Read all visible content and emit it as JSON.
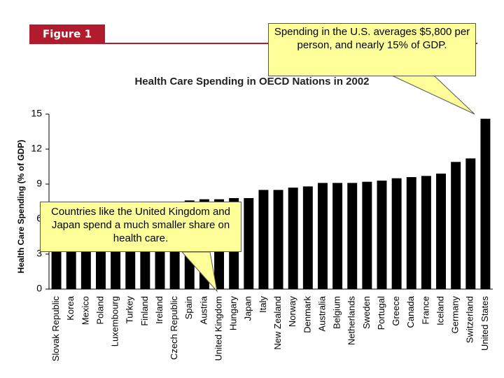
{
  "chart_data": {
    "type": "bar",
    "figure_label": "Figure 1",
    "title": "Health Care Spending in OECD Nations in 2002",
    "y_label": "Health Care Spending (% of GDP)",
    "annotations": [
      "Spending in the U.S. averages $5,800 per person, and nearly 15% of GDP.",
      "Countries like the United Kingdom and Japan spend a much smaller share on health care."
    ],
    "categories": [
      "Slovak Republic",
      "Korea",
      "Mexico",
      "Poland",
      "Luxembourg",
      "Turkey",
      "Finland",
      "Ireland",
      "Czech Republic",
      "Spain",
      "Austria",
      "United Kingdom",
      "Hungary",
      "Japan",
      "Italy",
      "New Zealand",
      "Norway",
      "Denmark",
      "Australia",
      "Belgium",
      "Netherlands",
      "Sweden",
      "Portugal",
      "Greece",
      "Canada",
      "France",
      "Iceland",
      "Germany",
      "Switzerland",
      "United States"
    ],
    "values": [
      5.7,
      5.1,
      6.1,
      6.1,
      6.2,
      6.6,
      7.3,
      7.3,
      7.4,
      7.6,
      7.7,
      7.7,
      7.8,
      7.8,
      8.5,
      8.5,
      8.7,
      8.8,
      9.1,
      9.1,
      9.1,
      9.2,
      9.3,
      9.5,
      9.6,
      9.7,
      9.9,
      10.9,
      11.2,
      14.6
    ],
    "color": "#000000",
    "ylim": [
      0,
      15
    ],
    "yticks": [
      0,
      3,
      6,
      9,
      12,
      15
    ],
    "grid": false
  }
}
